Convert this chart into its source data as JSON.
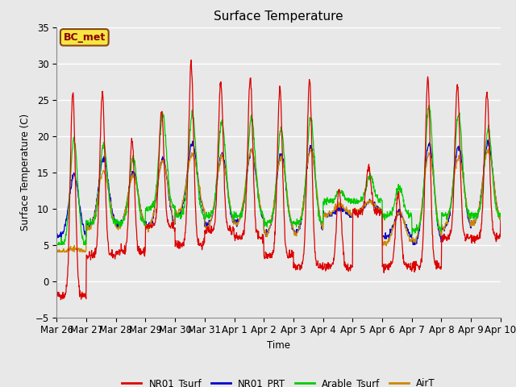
{
  "title": "Surface Temperature",
  "ylabel": "Surface Temperature (C)",
  "xlabel": "Time",
  "ylim": [
    -5,
    35
  ],
  "plot_bg_color": "#e8e8e8",
  "grid_color": "white",
  "annotation_text": "BC_met",
  "annotation_color": "#8B0000",
  "annotation_bg": "#f5e642",
  "annotation_edge": "#8B4513",
  "series_colors": {
    "NR01_Tsurf": "#dd0000",
    "NR01_PRT": "#0000cc",
    "Arable_Tsurf": "#00cc00",
    "AirT": "#cc8800"
  },
  "tick_labels": [
    "Mar 26",
    "Mar 27",
    "Mar 28",
    "Mar 29",
    "Mar 30",
    "Mar 31",
    "Apr 1",
    "Apr 2",
    "Apr 3",
    "Apr 4",
    "Apr 5",
    "Apr 6",
    "Apr 7",
    "Apr 8",
    "Apr 9",
    "Apr 10"
  ],
  "yticks": [
    -5,
    0,
    5,
    10,
    15,
    20,
    25,
    30,
    35
  ],
  "n_days": 15,
  "figsize": [
    6.4,
    4.8
  ],
  "dpi": 100
}
